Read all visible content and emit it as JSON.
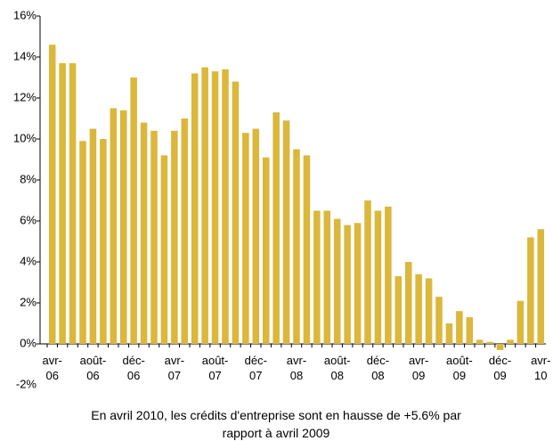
{
  "chart_data": {
    "type": "bar",
    "categories": [
      "avr-06",
      null,
      null,
      null,
      "août-06",
      null,
      null,
      null,
      "déc-06",
      null,
      null,
      null,
      "avr-07",
      null,
      null,
      null,
      "août-07",
      null,
      null,
      null,
      "déc-07",
      null,
      null,
      null,
      "avr-08",
      null,
      null,
      null,
      "août-08",
      null,
      null,
      null,
      "déc-08",
      null,
      null,
      null,
      "avr-09",
      null,
      null,
      null,
      "août-09",
      null,
      null,
      null,
      "déc-09",
      null,
      null,
      null,
      "avr-10"
    ],
    "values": [
      14.6,
      13.7,
      13.7,
      9.9,
      10.5,
      10.0,
      11.5,
      11.4,
      13.0,
      10.8,
      10.4,
      9.2,
      10.4,
      11.0,
      13.2,
      13.5,
      13.3,
      13.4,
      12.8,
      10.3,
      10.5,
      9.1,
      11.3,
      10.9,
      9.5,
      9.2,
      6.5,
      6.5,
      6.1,
      5.8,
      5.9,
      7.0,
      6.5,
      6.7,
      3.3,
      4.0,
      3.4,
      3.2,
      2.3,
      1.0,
      1.6,
      1.3,
      0.2,
      0.1,
      -0.3,
      0.2,
      2.1,
      5.2,
      5.6
    ],
    "color": "#dbb73b",
    "ylim": [
      -2,
      16
    ],
    "yticks": [
      {
        "value": -2,
        "label": "-2%"
      },
      {
        "value": 0,
        "label": "0%"
      },
      {
        "value": 2,
        "label": "2%"
      },
      {
        "value": 4,
        "label": "4%"
      },
      {
        "value": 6,
        "label": "6%"
      },
      {
        "value": 8,
        "label": "8%"
      },
      {
        "value": 10,
        "label": "10%"
      },
      {
        "value": 12,
        "label": "12%"
      },
      {
        "value": 14,
        "label": "14%"
      },
      {
        "value": 16,
        "label": "16%"
      }
    ],
    "grid": false,
    "caption": "En avril 2010, les crédits d'entreprise sont en hausse de +5.6% par rapport à avril 2009"
  }
}
